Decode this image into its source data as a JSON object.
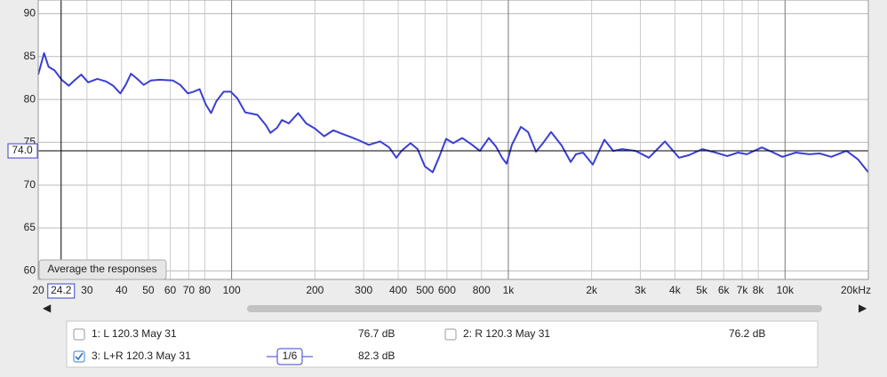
{
  "chart_data": {
    "type": "line",
    "log_x": true,
    "grid": true,
    "xlim": [
      20,
      20000
    ],
    "ylim": [
      59,
      91.6
    ],
    "xticks": [
      20,
      30,
      40,
      50,
      60,
      70,
      80,
      100,
      200,
      300,
      400,
      500,
      600,
      800,
      {
        "value": 1000,
        "label": "1k"
      },
      {
        "value": 2000,
        "label": "2k"
      },
      {
        "value": 3000,
        "label": "3k"
      },
      {
        "value": 4000,
        "label": "4k"
      },
      {
        "value": 5000,
        "label": "5k"
      },
      {
        "value": 6000,
        "label": "6k"
      },
      {
        "value": 7000,
        "label": "7k"
      },
      {
        "value": 8000,
        "label": "8k"
      },
      {
        "value": 10000,
        "label": "10k"
      },
      {
        "value": 20000,
        "label": "20kHz"
      }
    ],
    "yticks": [
      60,
      65,
      70,
      75,
      80,
      85,
      90
    ],
    "cursor": {
      "x": 24.2,
      "y": {
        "value": 74,
        "label": "74.0"
      }
    },
    "x": [
      20,
      21,
      21.8,
      22.9,
      24.3,
      25.8,
      27.2,
      28.6,
      30.3,
      32.7,
      35.2,
      37.3,
      39.6,
      41.4,
      43.3,
      45.6,
      48.1,
      51,
      54.9,
      61.4,
      65.2,
      69.5,
      72.8,
      76.6,
      80.7,
      84.3,
      88.1,
      93.6,
      99.3,
      105,
      112,
      124,
      133,
      138,
      146,
      152,
      161,
      174,
      186,
      200,
      216,
      233,
      250,
      270,
      290,
      313,
      344,
      371,
      394,
      411,
      443,
      470,
      499,
      533,
      561,
      596,
      632,
      681,
      733,
      789,
      850,
      902,
      949,
      986,
      1030,
      1110,
      1178,
      1259,
      1334,
      1427,
      1560,
      1680,
      1755,
      1862,
      2020,
      2223,
      2395,
      2580,
      2884,
      3221,
      3680,
      4140,
      4496,
      5023,
      5612,
      6180,
      6761,
      7278,
      8247,
      9080,
      9780,
      10930,
      12220,
      13340,
      14690,
      16670,
      18360,
      20000
    ],
    "series": [
      {
        "name": "3: L+R 120.3 May 31",
        "color": "#3a3fd0",
        "values": [
          82.9,
          85.4,
          83.8,
          83.4,
          82.3,
          81.6,
          82.3,
          82.9,
          82.0,
          82.4,
          82.1,
          81.6,
          80.7,
          81.7,
          83.0,
          82.4,
          81.7,
          82.2,
          82.3,
          82.2,
          81.7,
          80.7,
          80.9,
          81.2,
          79.4,
          78.4,
          79.8,
          80.9,
          80.9,
          80.1,
          78.5,
          78.2,
          77.0,
          76.1,
          76.7,
          77.6,
          77.2,
          78.4,
          77.2,
          76.6,
          75.7,
          76.4,
          76.0,
          75.6,
          75.2,
          74.7,
          75.1,
          74.4,
          73.2,
          74.0,
          74.9,
          74.2,
          72.2,
          71.5,
          73.2,
          75.4,
          74.9,
          75.5,
          74.8,
          74.0,
          75.5,
          74.5,
          73.2,
          72.5,
          74.7,
          76.8,
          76.2,
          73.9,
          74.9,
          76.2,
          74.6,
          72.7,
          73.6,
          73.8,
          72.4,
          75.3,
          74.0,
          74.2,
          74.0,
          73.2,
          75.1,
          73.2,
          73.5,
          74.2,
          73.8,
          73.4,
          73.8,
          73.6,
          74.4,
          73.8,
          73.3,
          73.8,
          73.6,
          73.7,
          73.3,
          74.0,
          73.0,
          71.5
        ]
      }
    ]
  },
  "tooltip": "Average the responses",
  "measurements": [
    {
      "label": "1: L 120.3 May 31",
      "level": "76.7 dB",
      "color": "#b01818",
      "checked": false
    },
    {
      "label": "2: R 120.3 May 31",
      "level": "76.2 dB",
      "color": "#1a7a2a",
      "checked": false
    },
    {
      "label": "3: L+R 120.3 May 31",
      "level": "82.3 dB",
      "color": "#3a3fd0",
      "checked": true
    }
  ],
  "smoothing": "1/6"
}
